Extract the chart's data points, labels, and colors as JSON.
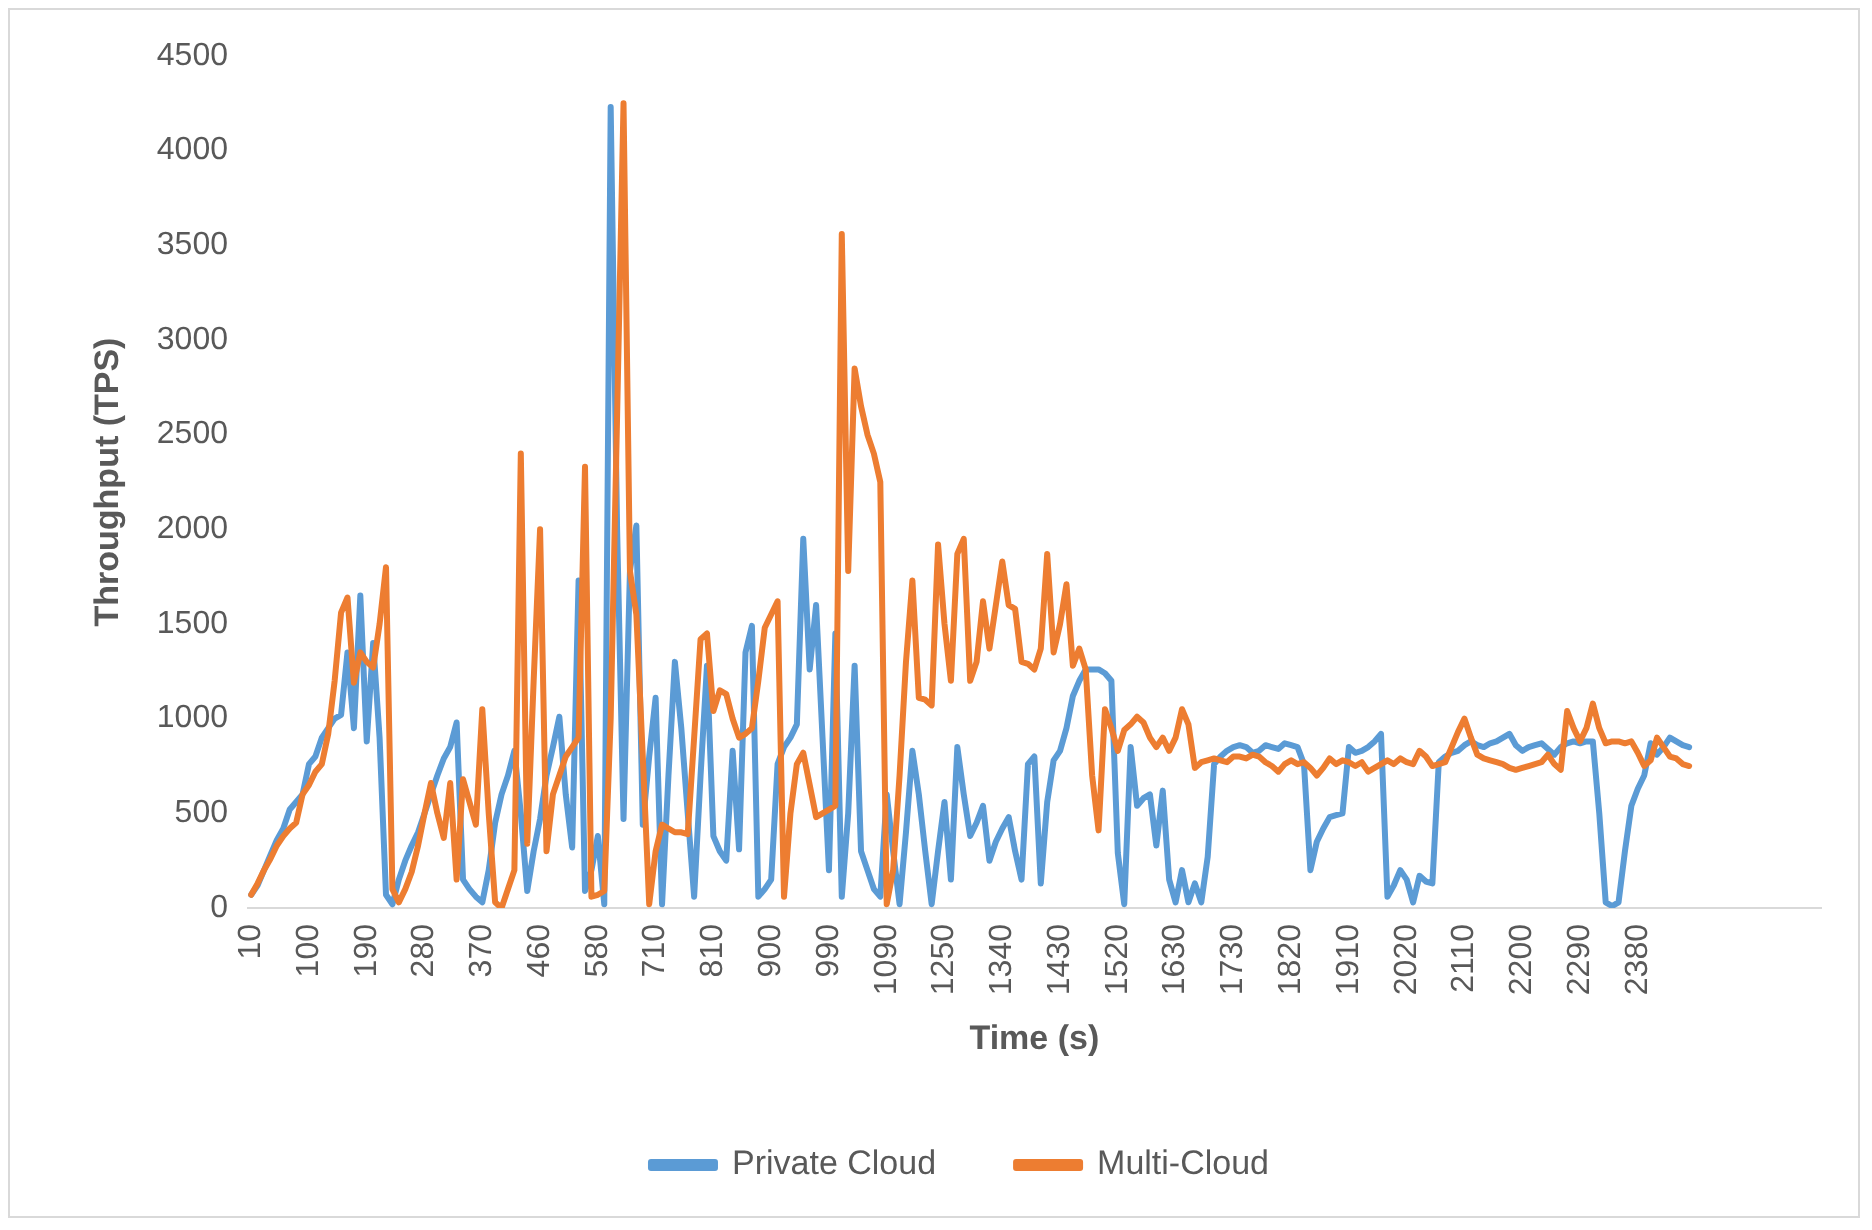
{
  "chart_data": {
    "type": "line",
    "xlabel": "Time (s)",
    "ylabel": "Throughput (TPS)",
    "categories": [
      "10",
      null,
      null,
      null,
      null,
      null,
      null,
      null,
      null,
      "100",
      null,
      null,
      null,
      null,
      null,
      null,
      null,
      null,
      "190",
      null,
      null,
      null,
      null,
      null,
      null,
      null,
      null,
      "280",
      null,
      null,
      null,
      null,
      null,
      null,
      null,
      null,
      "370",
      null,
      null,
      null,
      null,
      null,
      null,
      null,
      null,
      "460",
      null,
      null,
      null,
      null,
      null,
      null,
      null,
      null,
      "580",
      null,
      null,
      null,
      null,
      null,
      null,
      null,
      null,
      "710",
      null,
      null,
      null,
      null,
      null,
      null,
      null,
      null,
      "810",
      null,
      null,
      null,
      null,
      null,
      null,
      null,
      null,
      "900",
      null,
      null,
      null,
      null,
      null,
      null,
      null,
      null,
      "990",
      null,
      null,
      null,
      null,
      null,
      null,
      null,
      null,
      "1090",
      null,
      null,
      null,
      null,
      null,
      null,
      null,
      null,
      "1250",
      null,
      null,
      null,
      null,
      null,
      null,
      null,
      null,
      "1340",
      null,
      null,
      null,
      null,
      null,
      null,
      null,
      null,
      "1430",
      null,
      null,
      null,
      null,
      null,
      null,
      null,
      null,
      "1520",
      null,
      null,
      null,
      null,
      null,
      null,
      null,
      null,
      "1630",
      null,
      null,
      null,
      null,
      null,
      null,
      null,
      null,
      "1730",
      null,
      null,
      null,
      null,
      null,
      null,
      null,
      null,
      "1820",
      null,
      null,
      null,
      null,
      null,
      null,
      null,
      null,
      "1910",
      null,
      null,
      null,
      null,
      null,
      null,
      null,
      null,
      "2020",
      null,
      null,
      null,
      null,
      null,
      null,
      null,
      null,
      "2110",
      null,
      null,
      null,
      null,
      null,
      null,
      null,
      null,
      "2200",
      null,
      null,
      null,
      null,
      null,
      null,
      null,
      null,
      "2290",
      null,
      null,
      null,
      null,
      null,
      null,
      null,
      null,
      "2380",
      null,
      null,
      null,
      null,
      null,
      null,
      null,
      null,
      null,
      null,
      null,
      null,
      null,
      null,
      null,
      null,
      null,
      null,
      null,
      null,
      null,
      null,
      null,
      null,
      null,
      null,
      null,
      null
    ],
    "series": [
      {
        "name": "Private Cloud",
        "color": "#5b9bd5",
        "values": [
          70,
          120,
          200,
          280,
          360,
          420,
          520,
          560,
          600,
          760,
          800,
          900,
          950,
          1000,
          1020,
          1350,
          950,
          1650,
          880,
          1400,
          900,
          70,
          20,
          150,
          250,
          330,
          400,
          500,
          600,
          700,
          790,
          850,
          980,
          150,
          100,
          60,
          30,
          200,
          450,
          600,
          700,
          830,
          500,
          90,
          300,
          470,
          700,
          850,
          1010,
          600,
          320,
          1730,
          90,
          200,
          380,
          20,
          4230,
          2000,
          470,
          1780,
          2020,
          440,
          800,
          1110,
          20,
          700,
          1300,
          950,
          500,
          60,
          700,
          1280,
          380,
          300,
          250,
          830,
          310,
          1350,
          1490,
          60,
          100,
          150,
          760,
          850,
          900,
          970,
          1950,
          1260,
          1600,
          900,
          200,
          1450,
          60,
          500,
          1280,
          300,
          200,
          100,
          60,
          600,
          300,
          20,
          400,
          830,
          600,
          300,
          20,
          300,
          560,
          150,
          850,
          600,
          380,
          450,
          540,
          250,
          350,
          420,
          480,
          300,
          150,
          760,
          800,
          130,
          560,
          780,
          830,
          950,
          1120,
          1200,
          1260,
          1260,
          1260,
          1240,
          1200,
          290,
          20,
          850,
          540,
          580,
          600,
          330,
          620,
          150,
          30,
          200,
          30,
          130,
          30,
          270,
          760,
          800,
          830,
          850,
          860,
          850,
          820,
          830,
          860,
          850,
          840,
          870,
          860,
          850,
          760,
          200,
          350,
          420,
          480,
          490,
          500,
          850,
          820,
          830,
          850,
          880,
          920,
          60,
          120,
          200,
          150,
          30,
          170,
          140,
          130,
          770,
          800,
          820,
          830,
          860,
          880,
          860,
          850,
          870,
          880,
          900,
          920,
          860,
          830,
          850,
          860,
          870,
          840,
          810,
          850,
          870,
          880,
          870,
          880,
          880,
          500,
          30,
          10,
          30,
          300,
          540,
          630,
          700,
          870,
          810,
          850,
          900,
          880,
          860,
          850,
          null,
          null,
          null,
          null,
          null,
          null,
          null,
          null,
          null,
          null,
          null,
          null,
          null,
          null,
          null,
          null,
          null,
          null,
          null,
          null
        ]
      },
      {
        "name": "Multi-Cloud",
        "color": "#ed7d31",
        "values": [
          70,
          130,
          200,
          260,
          330,
          380,
          420,
          450,
          600,
          650,
          720,
          760,
          920,
          1200,
          1560,
          1640,
          1190,
          1350,
          1300,
          1270,
          1500,
          1800,
          100,
          30,
          100,
          190,
          330,
          500,
          660,
          500,
          370,
          660,
          150,
          680,
          560,
          440,
          1050,
          500,
          30,
          0,
          100,
          200,
          2400,
          340,
          1200,
          2000,
          300,
          600,
          700,
          800,
          850,
          900,
          2330,
          60,
          70,
          90,
          1000,
          2600,
          4250,
          1780,
          1550,
          800,
          20,
          300,
          440,
          420,
          400,
          400,
          390,
          900,
          1420,
          1450,
          1040,
          1150,
          1130,
          1000,
          900,
          920,
          950,
          1200,
          1480,
          1550,
          1620,
          60,
          500,
          760,
          820,
          650,
          480,
          500,
          520,
          540,
          3560,
          1780,
          2850,
          2650,
          2500,
          2400,
          2250,
          20,
          200,
          700,
          1300,
          1730,
          1110,
          1100,
          1070,
          1920,
          1500,
          1200,
          1870,
          1950,
          1200,
          1300,
          1620,
          1370,
          1600,
          1830,
          1600,
          1580,
          1300,
          1290,
          1260,
          1370,
          1870,
          1350,
          1500,
          1710,
          1280,
          1370,
          1260,
          700,
          410,
          1050,
          950,
          830,
          940,
          970,
          1010,
          980,
          900,
          850,
          900,
          830,
          900,
          1050,
          970,
          740,
          770,
          780,
          790,
          780,
          770,
          800,
          800,
          790,
          810,
          800,
          770,
          750,
          720,
          760,
          780,
          760,
          770,
          740,
          700,
          740,
          790,
          760,
          780,
          770,
          750,
          770,
          720,
          740,
          760,
          780,
          760,
          790,
          770,
          760,
          830,
          800,
          750,
          760,
          770,
          850,
          930,
          1000,
          900,
          810,
          790,
          780,
          770,
          760,
          740,
          730,
          740,
          750,
          760,
          770,
          810,
          760,
          730,
          1040,
          950,
          880,
          950,
          1080,
          950,
          870,
          880,
          880,
          870,
          880,
          820,
          750,
          780,
          900,
          850,
          800,
          790,
          760,
          750,
          null,
          null,
          null,
          null,
          null,
          null,
          null,
          null,
          null,
          null,
          null,
          null,
          null,
          null,
          null,
          null,
          null,
          null,
          null,
          null
        ]
      }
    ],
    "ylim": [
      0,
      4500
    ],
    "yticks": [
      0,
      500,
      1000,
      1500,
      2000,
      2500,
      3000,
      3500,
      4000,
      4500
    ],
    "grid": false,
    "legend": "bottom",
    "marker": "none"
  }
}
